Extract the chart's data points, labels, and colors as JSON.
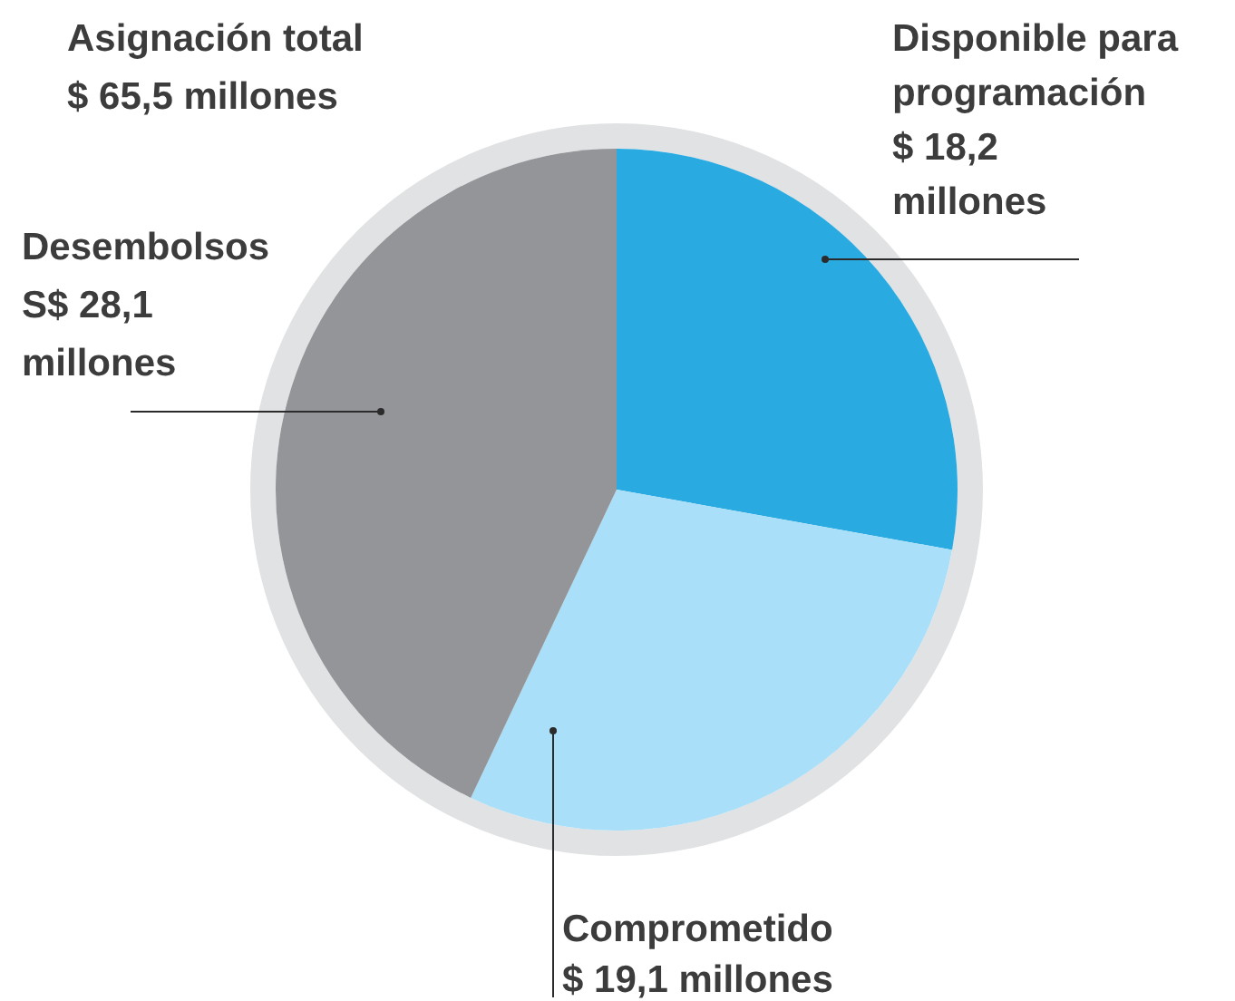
{
  "chart_data": {
    "type": "pie",
    "title": "Asignación total",
    "subtitle": "$ 65,5 millones",
    "categories": [
      "Disponible para programación",
      "Comprometido",
      "Desembolsos"
    ],
    "values": [
      18.2,
      19.1,
      28.1
    ],
    "value_labels": [
      "$ 18,2 millones",
      "$ 19,1 millones",
      "S$ 28,1 millones"
    ],
    "colors": [
      "#29abe2",
      "#a9dff8",
      "#939598"
    ],
    "legend": false
  }
}
